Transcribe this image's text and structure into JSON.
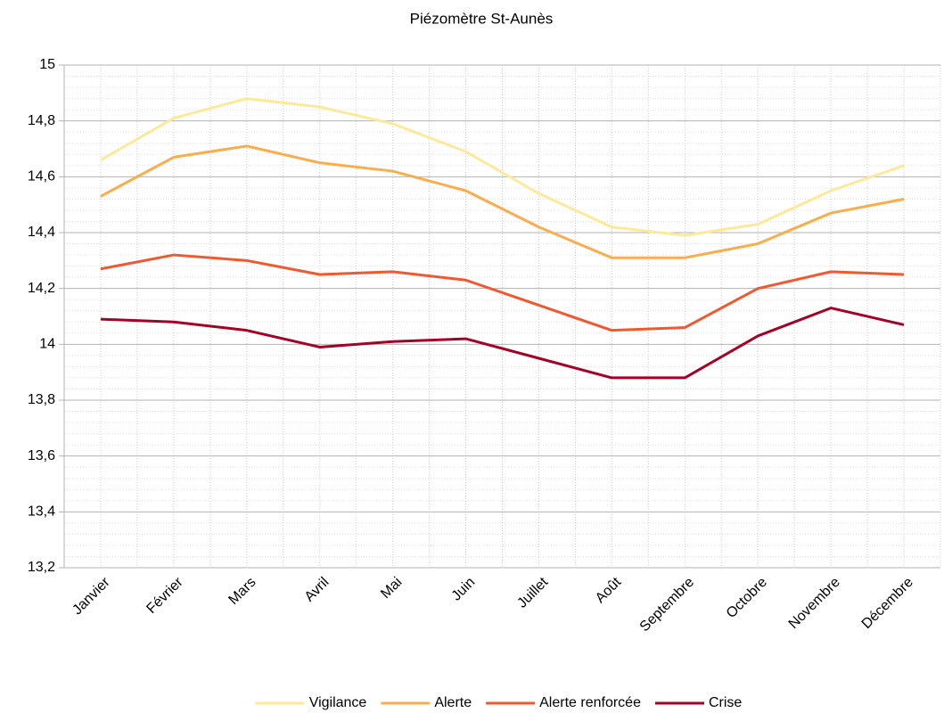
{
  "chart_data": {
    "type": "line",
    "title": "Piézomètre St-Aunès",
    "categories": [
      "Janvier",
      "Février",
      "Mars",
      "Avril",
      "Mai",
      "Juin",
      "Juillet",
      "Août",
      "Septembre",
      "Octobre",
      "Novembre",
      "Décembre"
    ],
    "series": [
      {
        "name": "Vigilance",
        "color": "#fde99a",
        "values": [
          14.66,
          14.81,
          14.88,
          14.85,
          14.79,
          14.69,
          14.54,
          14.42,
          14.39,
          14.43,
          14.55,
          14.64
        ]
      },
      {
        "name": "Alerte",
        "color": "#f9ad4c",
        "values": [
          14.53,
          14.67,
          14.71,
          14.65,
          14.62,
          14.55,
          14.42,
          14.31,
          14.31,
          14.36,
          14.47,
          14.52
        ]
      },
      {
        "name": "Alerte renforcée",
        "color": "#f0592f",
        "values": [
          14.27,
          14.32,
          14.3,
          14.25,
          14.26,
          14.23,
          14.14,
          14.05,
          14.06,
          14.2,
          14.26,
          14.25
        ]
      },
      {
        "name": "Crise",
        "color": "#a50026",
        "values": [
          14.09,
          14.08,
          14.05,
          13.99,
          14.01,
          14.02,
          13.95,
          13.88,
          13.88,
          14.03,
          14.13,
          14.07
        ]
      }
    ],
    "ylim": [
      13.2,
      15
    ],
    "yticks": [
      {
        "value": 13.2,
        "label": "13,2"
      },
      {
        "value": 13.4,
        "label": "13,4"
      },
      {
        "value": 13.6,
        "label": "13,6"
      },
      {
        "value": 13.8,
        "label": "13,8"
      },
      14,
      {
        "value": 14.2,
        "label": "14,2"
      },
      {
        "value": 14.4,
        "label": "14,4"
      },
      {
        "value": 14.6,
        "label": "14,6"
      },
      {
        "value": 14.8,
        "label": "14,8"
      },
      15
    ],
    "grid": true,
    "legend": "bottom"
  }
}
